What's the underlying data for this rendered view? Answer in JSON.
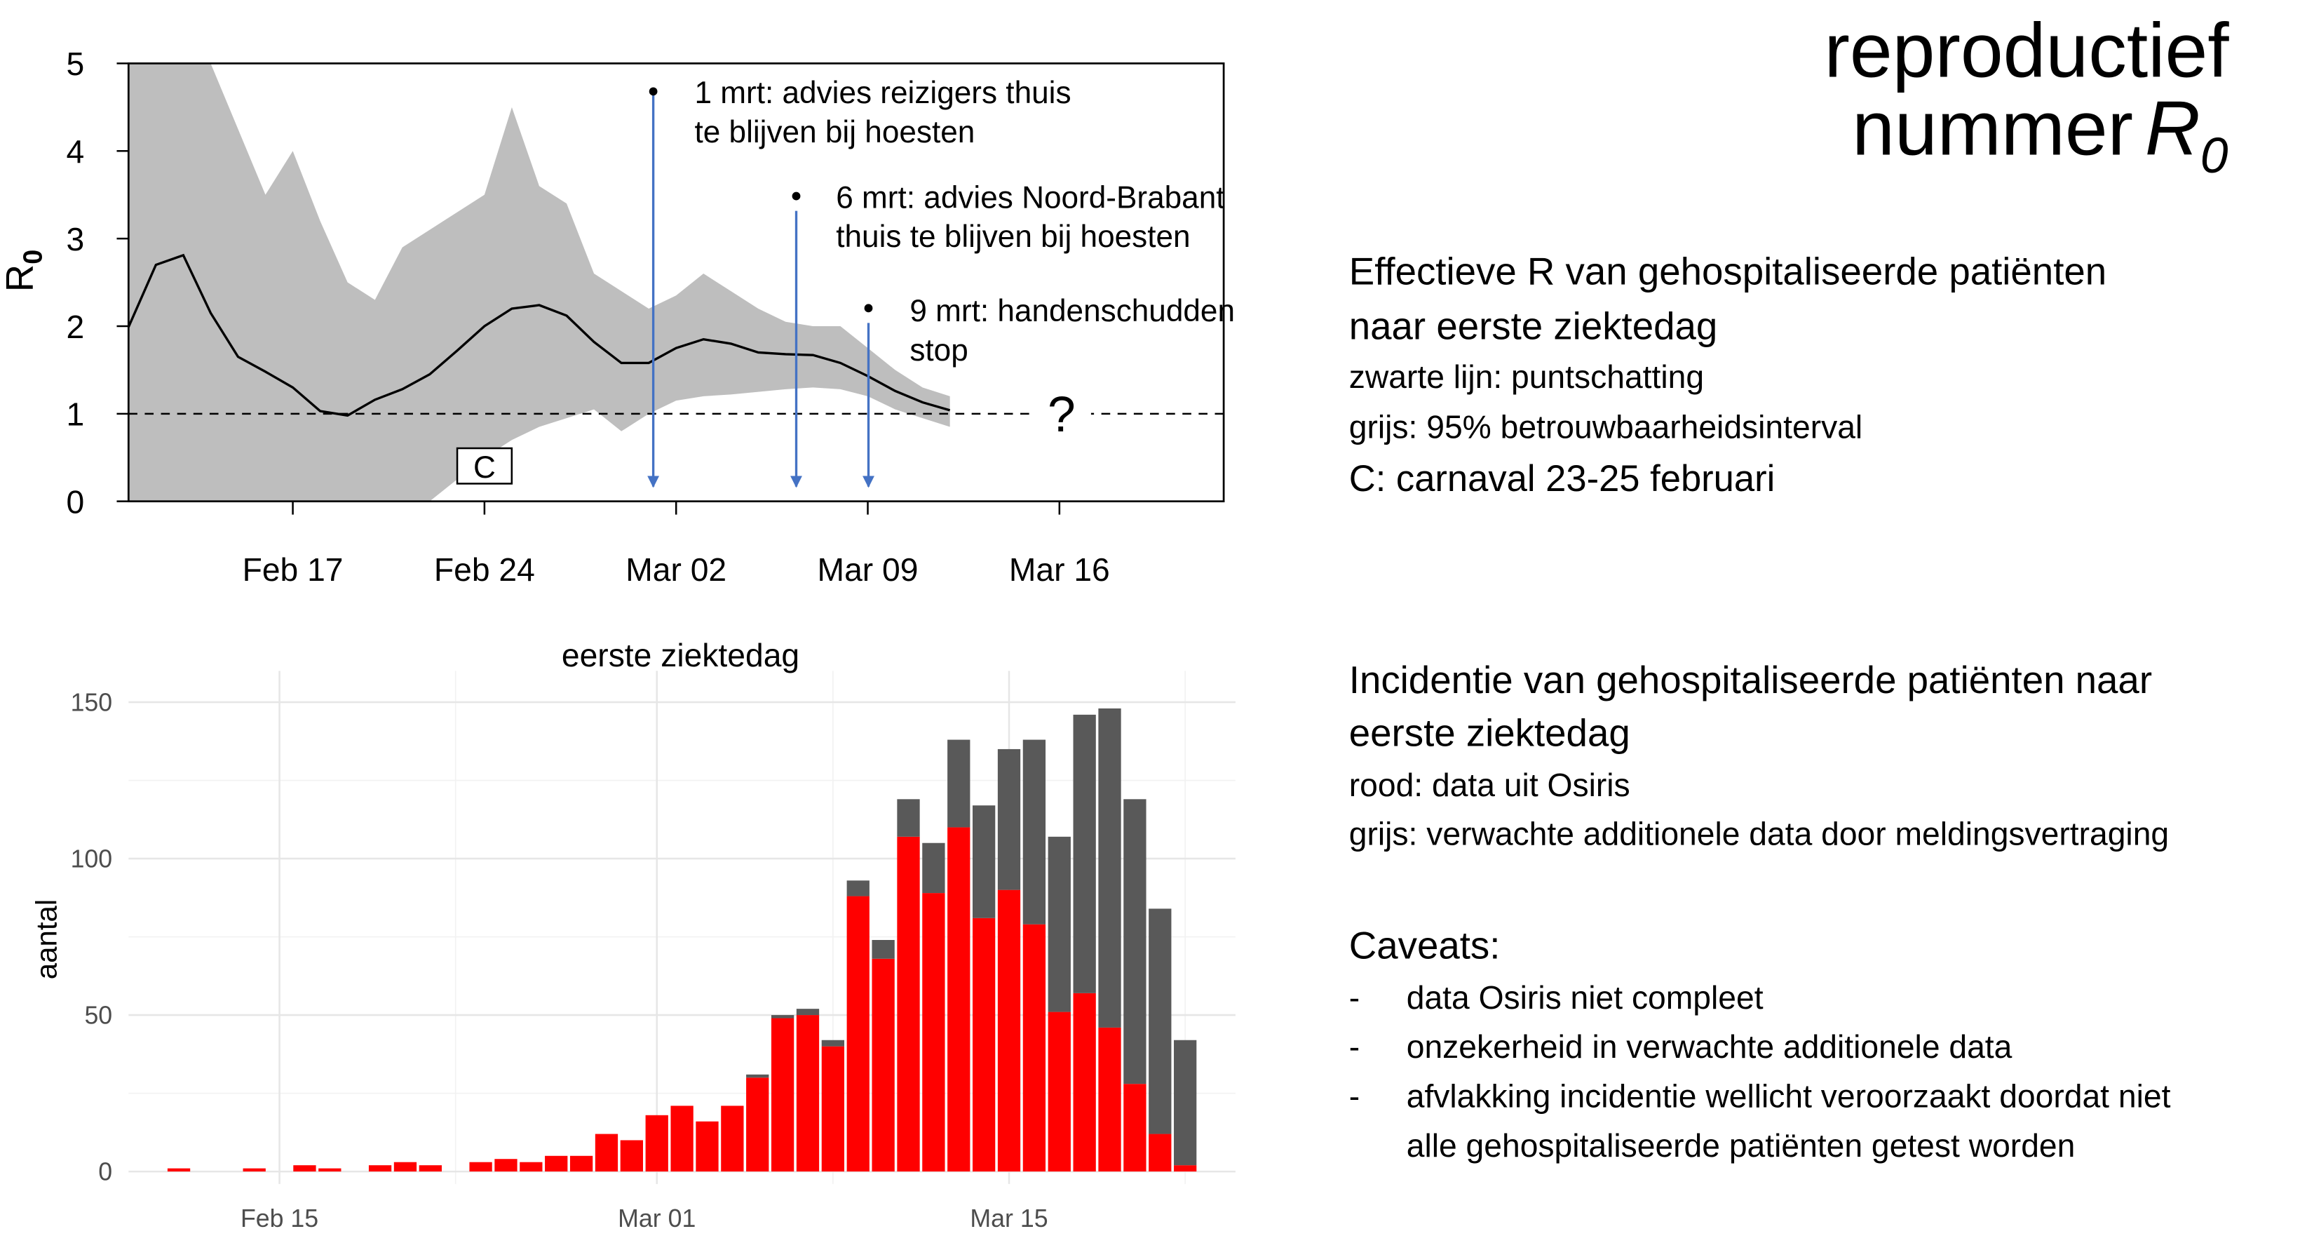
{
  "panel": {
    "title_line1": "reproductief",
    "title_line2": "nummer",
    "title_symbol": "R",
    "title_subscript": "0",
    "sections": [
      {
        "heading": [
          "Effectieve R van gehospitaliseerde patiënten",
          "naar eerste ziektedag"
        ],
        "lines": [
          "zwarte lijn: puntschatting",
          "grijs: 95% betrouwbaarheidsinterval"
        ],
        "note": "C: carnaval 23-25 februari"
      },
      {
        "heading": [
          "Incidentie van gehospitaliseerde patiënten naar",
          "eerste ziektedag"
        ],
        "lines": [
          "rood: data uit Osiris",
          "grijs: verwachte additionele data door meldingsvertraging"
        ]
      }
    ],
    "caveats": {
      "heading": "Caveats:",
      "bullet": "-",
      "items": [
        [
          "data Osiris niet compleet"
        ],
        [
          "onzekerheid in verwachte additionele data"
        ],
        [
          "afvlakking incidentie wellicht veroorzaakt doordat niet",
          "alle gehospitaliseerde patiënten getest worden"
        ]
      ]
    }
  },
  "chart_data": [
    {
      "type": "line",
      "ylabel": "R",
      "ylabel_sub": "0",
      "x": [
        "Feb 11",
        "Feb 12",
        "Feb 13",
        "Feb 14",
        "Feb 15",
        "Feb 16",
        "Feb 17",
        "Feb 18",
        "Feb 19",
        "Feb 20",
        "Feb 21",
        "Feb 22",
        "Feb 23",
        "Feb 24",
        "Feb 25",
        "Feb 26",
        "Feb 27",
        "Feb 28",
        "Feb 29",
        "Mar 01",
        "Mar 02",
        "Mar 03",
        "Mar 04",
        "Mar 05",
        "Mar 06",
        "Mar 07",
        "Mar 08",
        "Mar 09",
        "Mar 10",
        "Mar 11",
        "Mar 12"
      ],
      "series": [
        {
          "color": "#000000",
          "values": [
            1.99,
            2.7,
            2.81,
            2.15,
            1.65,
            1.48,
            1.3,
            1.03,
            0.98,
            1.16,
            1.28,
            1.45,
            1.72,
            2.0,
            2.2,
            2.24,
            2.12,
            1.82,
            1.58,
            1.58,
            1.75,
            1.85,
            1.8,
            1.7,
            1.68,
            1.67,
            1.58,
            1.43,
            1.26,
            1.13,
            1.04
          ]
        }
      ],
      "band": {
        "color": "#bebebe",
        "upper": [
          5,
          5,
          5,
          5,
          4.25,
          3.5,
          4.0,
          3.2,
          2.5,
          2.3,
          2.9,
          3.1,
          3.3,
          3.5,
          4.5,
          3.6,
          3.4,
          2.6,
          2.4,
          2.2,
          2.35,
          2.6,
          2.4,
          2.2,
          2.05,
          2.0,
          2.0,
          1.75,
          1.5,
          1.3,
          1.2
        ],
        "lower": [
          0,
          0,
          0,
          0,
          0,
          0,
          0,
          0,
          0,
          0,
          0,
          0,
          0.25,
          0.5,
          0.7,
          0.85,
          0.95,
          1.05,
          0.8,
          1.0,
          1.15,
          1.2,
          1.22,
          1.25,
          1.28,
          1.3,
          1.28,
          1.2,
          1.05,
          0.95,
          0.85
        ]
      },
      "hline": 1,
      "xlim": [
        "Feb 11",
        "Mar 22"
      ],
      "ylim": [
        0,
        5
      ],
      "xticks": [
        "Feb 17",
        "Feb 24",
        "Mar 02",
        "Mar 09",
        "Mar 16"
      ],
      "yticks": [
        0,
        1,
        2,
        3,
        4,
        5
      ],
      "annotations": [
        {
          "lines": [
            "1 mrt: advies reizigers thuis",
            "te blijven bij hoesten"
          ]
        },
        {
          "lines": [
            "6 mrt: advies Noord-Brabant",
            "thuis te blijven bij hoesten"
          ]
        },
        {
          "lines": [
            "9 mrt: handenschudden",
            "stop"
          ]
        }
      ],
      "arrow_color": "#4472c4",
      "unknown_label": "?",
      "event_label": "C"
    },
    {
      "type": "bar",
      "stacked": true,
      "title": "eerste ziektedag",
      "ylabel": "aantal",
      "x": [
        "Feb 11",
        "Feb 12",
        "Feb 13",
        "Feb 14",
        "Feb 15",
        "Feb 16",
        "Feb 17",
        "Feb 18",
        "Feb 19",
        "Feb 20",
        "Feb 21",
        "Feb 22",
        "Feb 23",
        "Feb 24",
        "Feb 25",
        "Feb 26",
        "Feb 27",
        "Feb 28",
        "Feb 29",
        "Mar 01",
        "Mar 02",
        "Mar 03",
        "Mar 04",
        "Mar 05",
        "Mar 06",
        "Mar 07",
        "Mar 08",
        "Mar 09",
        "Mar 10",
        "Mar 11",
        "Mar 12",
        "Mar 13",
        "Mar 14",
        "Mar 15",
        "Mar 16",
        "Mar 17",
        "Mar 18",
        "Mar 19",
        "Mar 20",
        "Mar 21",
        "Mar 22"
      ],
      "series": [
        {
          "color": "#ff0000",
          "values": [
            1,
            0,
            0,
            1,
            0,
            2,
            1,
            0,
            2,
            3,
            2,
            0,
            3,
            4,
            3,
            5,
            5,
            12,
            10,
            18,
            21,
            16,
            21,
            30,
            49,
            50,
            40,
            88,
            68,
            107,
            89,
            110,
            81,
            90,
            79,
            51,
            57,
            46,
            28,
            12,
            2
          ]
        },
        {
          "color": "#595959",
          "values": [
            0,
            0,
            0,
            0,
            0,
            0,
            0,
            0,
            0,
            0,
            0,
            0,
            0,
            0,
            0,
            0,
            0,
            0,
            0,
            0,
            0,
            0,
            0,
            1,
            1,
            2,
            2,
            5,
            6,
            12,
            16,
            28,
            36,
            45,
            59,
            56,
            89,
            102,
            91,
            72,
            40
          ]
        }
      ],
      "xlim": [
        "Feb 09",
        "Mar 24"
      ],
      "ylim": [
        -4,
        160
      ],
      "xticks": [
        "Feb 15",
        "Mar 01",
        "Mar 15"
      ],
      "xminorticks": [
        "Feb 22",
        "Mar 08",
        "Mar 22"
      ],
      "yticks": [
        0,
        50,
        100,
        150
      ],
      "yminorticks": [
        25,
        75,
        125
      ],
      "grid": true
    }
  ]
}
